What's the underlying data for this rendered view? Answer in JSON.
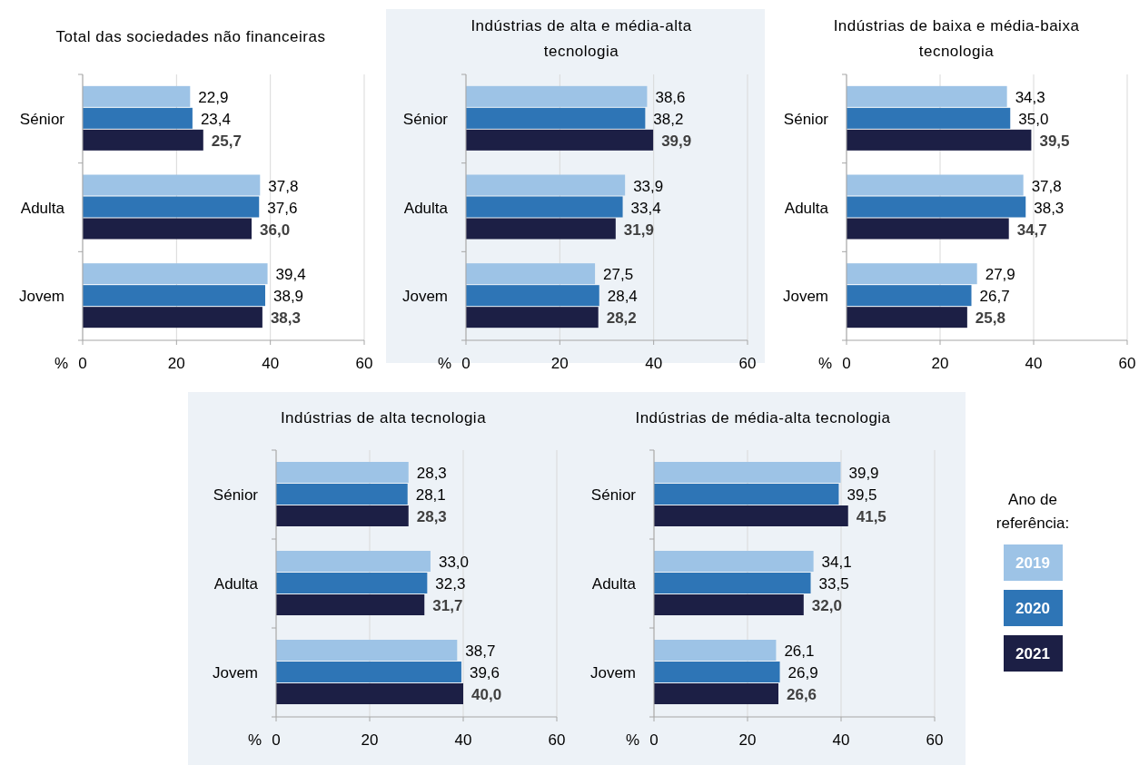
{
  "chart_data": [
    {
      "type": "bar",
      "orientation": "horizontal",
      "title": "Total das sociedades não financeiras",
      "xlabel": "%",
      "categories": [
        "Sénior",
        "Adulta",
        "Jovem"
      ],
      "xlim": [
        0,
        60
      ],
      "xticks": [
        0,
        20,
        40,
        60
      ],
      "grid": "x",
      "legend": false,
      "series": [
        {
          "color": "#9dc3e6",
          "values": [
            22.9,
            37.8,
            39.4
          ],
          "value_labels": [
            "22,9",
            "37,8",
            "39,4"
          ]
        },
        {
          "color": "#2e75b6",
          "values": [
            23.4,
            37.6,
            38.9
          ],
          "value_labels": [
            "23,4",
            "37,6",
            "38,9"
          ]
        },
        {
          "color": "#1c1f45",
          "values": [
            25.7,
            36.0,
            38.3
          ],
          "value_labels": [
            "25,7",
            "36,0",
            "38,3"
          ]
        }
      ]
    },
    {
      "type": "bar",
      "orientation": "horizontal",
      "title": "Indústrias de alta e média-alta tecnologia",
      "xlabel": "%",
      "categories": [
        "Sénior",
        "Adulta",
        "Jovem"
      ],
      "xlim": [
        0,
        60
      ],
      "xticks": [
        0,
        20,
        40,
        60
      ],
      "grid": "x",
      "legend": false,
      "series": [
        {
          "color": "#9dc3e6",
          "values": [
            38.6,
            33.9,
            27.5
          ],
          "value_labels": [
            "38,6",
            "33,9",
            "27,5"
          ]
        },
        {
          "color": "#2e75b6",
          "values": [
            38.2,
            33.4,
            28.4
          ],
          "value_labels": [
            "38,2",
            "33,4",
            "28,4"
          ]
        },
        {
          "color": "#1c1f45",
          "values": [
            39.9,
            31.9,
            28.2
          ],
          "value_labels": [
            "39,9",
            "31,9",
            "28,2"
          ]
        }
      ]
    },
    {
      "type": "bar",
      "orientation": "horizontal",
      "title": "Indústrias de baixa e média-baixa tecnologia",
      "xlabel": "%",
      "categories": [
        "Sénior",
        "Adulta",
        "Jovem"
      ],
      "xlim": [
        0,
        60
      ],
      "xticks": [
        0,
        20,
        40,
        60
      ],
      "grid": "x",
      "legend": false,
      "series": [
        {
          "color": "#9dc3e6",
          "values": [
            34.3,
            37.8,
            27.9
          ],
          "value_labels": [
            "34,3",
            "37,8",
            "27,9"
          ]
        },
        {
          "color": "#2e75b6",
          "values": [
            35.0,
            38.3,
            26.7
          ],
          "value_labels": [
            "35,0",
            "38,3",
            "26,7"
          ]
        },
        {
          "color": "#1c1f45",
          "values": [
            39.5,
            34.7,
            25.8
          ],
          "value_labels": [
            "39,5",
            "34,7",
            "25,8"
          ]
        }
      ]
    },
    {
      "type": "bar",
      "orientation": "horizontal",
      "title": "Indústrias de alta tecnologia",
      "xlabel": "%",
      "categories": [
        "Sénior",
        "Adulta",
        "Jovem"
      ],
      "xlim": [
        0,
        60
      ],
      "xticks": [
        0,
        20,
        40,
        60
      ],
      "grid": "x",
      "legend": false,
      "series": [
        {
          "color": "#9dc3e6",
          "values": [
            28.3,
            33.0,
            38.7
          ],
          "value_labels": [
            "28,3",
            "33,0",
            "38,7"
          ]
        },
        {
          "color": "#2e75b6",
          "values": [
            28.1,
            32.3,
            39.6
          ],
          "value_labels": [
            "28,1",
            "32,3",
            "39,6"
          ]
        },
        {
          "color": "#1c1f45",
          "values": [
            28.3,
            31.7,
            40.0
          ],
          "value_labels": [
            "28,3",
            "31,7",
            "40,0"
          ]
        }
      ]
    },
    {
      "type": "bar",
      "orientation": "horizontal",
      "title": "Indústrias de média-alta tecnologia",
      "xlabel": "%",
      "categories": [
        "Sénior",
        "Adulta",
        "Jovem"
      ],
      "xlim": [
        0,
        60
      ],
      "xticks": [
        0,
        20,
        40,
        60
      ],
      "grid": "x",
      "legend": "right",
      "legend_title": "Ano de referência:",
      "series": [
        {
          "name": "2019",
          "color": "#9dc3e6",
          "values": [
            39.9,
            34.1,
            26.1
          ],
          "value_labels": [
            "39,9",
            "34,1",
            "26,1"
          ]
        },
        {
          "name": "2020",
          "color": "#2e75b6",
          "values": [
            39.5,
            33.5,
            26.9
          ],
          "value_labels": [
            "39,5",
            "33,5",
            "26,9"
          ]
        },
        {
          "name": "2021",
          "color": "#1c1f45",
          "values": [
            41.5,
            32.0,
            26.6
          ],
          "value_labels": [
            "41,5",
            "32,0",
            "26,6"
          ]
        }
      ]
    }
  ]
}
